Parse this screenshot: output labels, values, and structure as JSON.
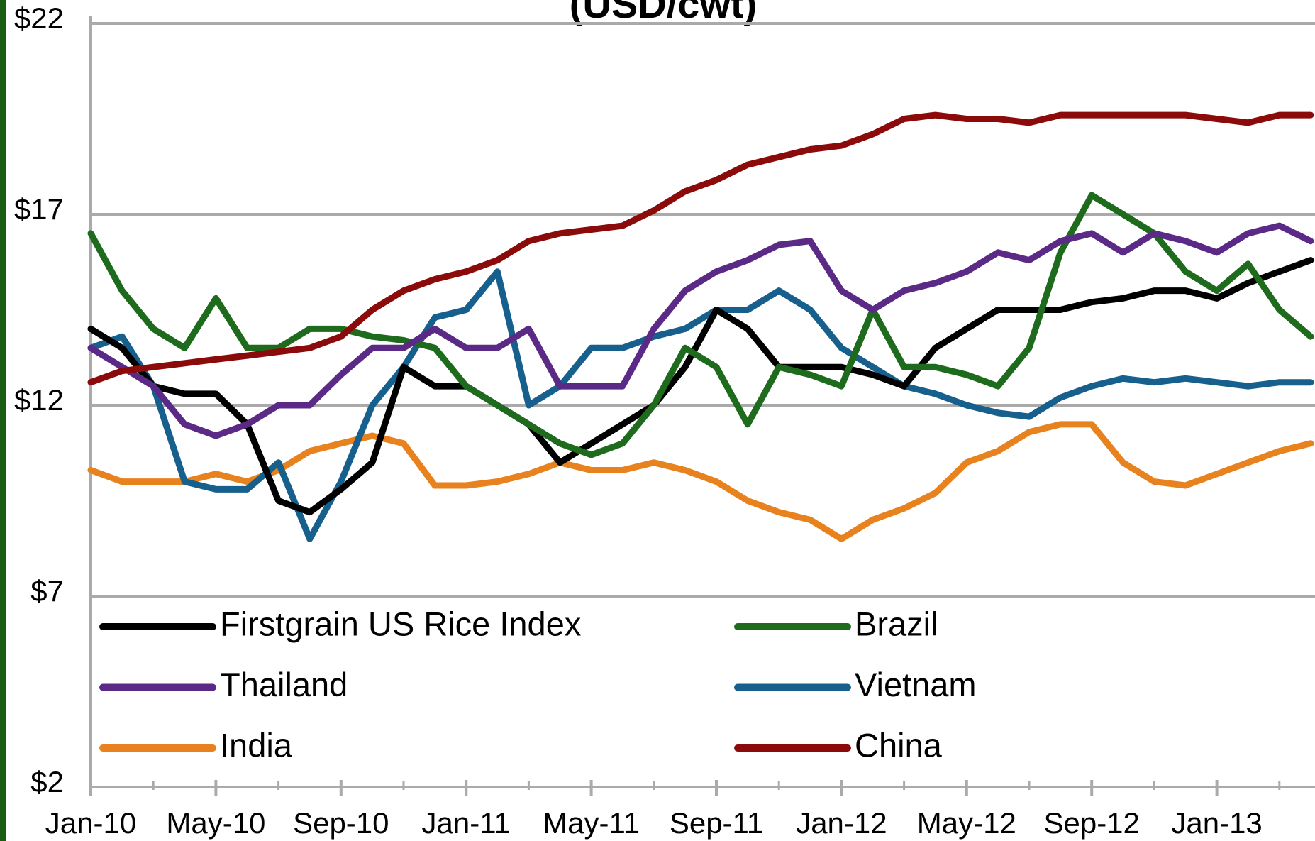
{
  "chart_data": {
    "type": "line",
    "title": "(USD/cwt)",
    "categories": [
      "Jan-10",
      null,
      null,
      null,
      "May-10",
      null,
      null,
      null,
      "Sep-10",
      null,
      null,
      null,
      "Jan-11",
      null,
      null,
      null,
      "May-11",
      null,
      null,
      null,
      "Sep-11",
      null,
      null,
      null,
      "Jan-12",
      null,
      null,
      null,
      "May-12",
      null,
      null,
      null,
      "Sep-12",
      null,
      null,
      null,
      "Jan-13",
      null,
      null,
      null
    ],
    "series": [
      {
        "name": "Firstgrain US Rice Index",
        "color": "#000000",
        "values": [
          14,
          13.5,
          12.5,
          12.3,
          12.3,
          11.5,
          9.5,
          9.2,
          9.8,
          10.5,
          13,
          12.5,
          12.5,
          12,
          11.5,
          10.5,
          11,
          11.5,
          12,
          13,
          14.5,
          14,
          13,
          13,
          13,
          12.8,
          12.5,
          13.5,
          14,
          14.5,
          14.5,
          14.5,
          14.7,
          14.8,
          15,
          15,
          14.8,
          15.2,
          15.5,
          15.8
        ]
      },
      {
        "name": "Brazil",
        "color": "#1e6b1e",
        "values": [
          16.5,
          15,
          14,
          13.5,
          14.8,
          13.5,
          13.5,
          14,
          14,
          13.8,
          13.7,
          13.5,
          12.5,
          12,
          11.5,
          11,
          10.7,
          11,
          12,
          13.5,
          13,
          11.5,
          13,
          12.8,
          12.5,
          14.5,
          13,
          13,
          12.8,
          12.5,
          13.5,
          16,
          17.5,
          17,
          16.5,
          15.5,
          15,
          15.7,
          14.5,
          13.8
        ]
      },
      {
        "name": "Thailand",
        "color": "#5b2a86",
        "values": [
          13.5,
          13,
          12.5,
          11.5,
          11.2,
          11.5,
          12,
          12,
          12.8,
          13.5,
          13.5,
          14,
          13.5,
          13.5,
          14,
          12.5,
          12.5,
          12.5,
          14,
          15,
          15.5,
          15.8,
          16.2,
          16.3,
          15,
          14.5,
          15,
          15.2,
          15.5,
          16,
          15.8,
          16.3,
          16.5,
          16,
          16.5,
          16.3,
          16,
          16.5,
          16.7,
          16.3
        ]
      },
      {
        "name": "Vietnam",
        "color": "#175f8c",
        "values": [
          13.5,
          13.8,
          12.5,
          10,
          9.8,
          9.8,
          10.5,
          8.5,
          10,
          12,
          13,
          14.3,
          14.5,
          15.5,
          12,
          12.5,
          13.5,
          13.5,
          13.8,
          14,
          14.5,
          14.5,
          15,
          14.5,
          13.5,
          13,
          12.5,
          12.3,
          12,
          11.8,
          11.7,
          12.2,
          12.5,
          12.7,
          12.6,
          12.7,
          12.6,
          12.5,
          12.6,
          12.6
        ]
      },
      {
        "name": "India",
        "color": "#e8821e",
        "values": [
          10.3,
          10,
          10,
          10,
          10.2,
          10,
          10.3,
          10.8,
          11,
          11.2,
          11,
          9.9,
          9.9,
          10,
          10.2,
          10.5,
          10.3,
          10.3,
          10.5,
          10.3,
          10,
          9.5,
          9.2,
          9,
          8.5,
          9,
          9.3,
          9.7,
          10.5,
          10.8,
          11.3,
          11.5,
          11.5,
          10.5,
          10,
          9.9,
          10.2,
          10.5,
          10.8,
          11
        ]
      },
      {
        "name": "China",
        "color": "#8b0a0a",
        "values": [
          12.6,
          12.9,
          13,
          13.1,
          13.2,
          13.3,
          13.4,
          13.5,
          13.8,
          14.5,
          15,
          15.3,
          15.5,
          15.8,
          16.3,
          16.5,
          16.6,
          16.7,
          17.1,
          17.6,
          17.9,
          18.3,
          18.5,
          18.7,
          18.8,
          19.1,
          19.5,
          19.6,
          19.5,
          19.5,
          19.4,
          19.6,
          19.6,
          19.6,
          19.6,
          19.6,
          19.5,
          19.4,
          19.6,
          19.6
        ]
      }
    ],
    "ylim": [
      2,
      22
    ],
    "yticks": [
      {
        "value": 2,
        "label": "$2"
      },
      {
        "value": 7,
        "label": "$7"
      },
      {
        "value": 12,
        "label": "$12"
      },
      {
        "value": 17,
        "label": "$17"
      },
      {
        "value": 22,
        "label": "$22"
      }
    ],
    "grid": true
  }
}
